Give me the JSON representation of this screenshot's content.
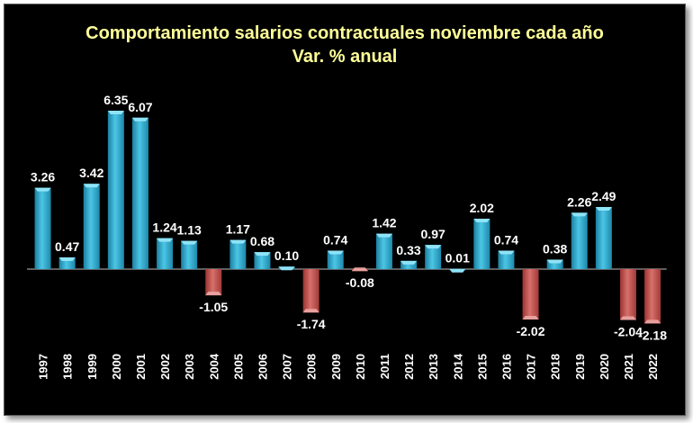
{
  "chart_data": {
    "type": "bar",
    "title": "Comportamiento salarios contractuales noviembre cada año",
    "subtitle": "Var. % anual",
    "categories": [
      "1997",
      "1998",
      "1999",
      "2000",
      "2001",
      "2002",
      "2003",
      "2004",
      "2005",
      "2006",
      "2007",
      "2008",
      "2009",
      "2010",
      "2011",
      "2012",
      "2013",
      "2014",
      "2015",
      "2016",
      "2017",
      "2018",
      "2019",
      "2020",
      "2021",
      "2022"
    ],
    "values": [
      3.26,
      0.47,
      3.42,
      6.35,
      6.07,
      1.24,
      1.13,
      -1.05,
      1.17,
      0.68,
      0.1,
      -1.74,
      0.74,
      -0.08,
      1.42,
      0.33,
      0.97,
      0.01,
      2.02,
      0.74,
      -2.02,
      0.38,
      2.26,
      2.49,
      -2.04,
      -2.18
    ],
    "value_labels": [
      "3.26",
      "0.47",
      "3.42",
      "6.35",
      "6.07",
      "1.24",
      "1.13",
      "-1.05",
      "1.17",
      "0.68",
      "0.10",
      "-1.74",
      "0.74",
      "-0.08",
      "1.42",
      "0.33",
      "0.97",
      "0.01",
      "2.02",
      "0.74",
      "-2.02",
      "0.38",
      "2.26",
      "2.49",
      "-2.04",
      "-2.18"
    ],
    "ylim": [
      -2.3,
      6.5
    ],
    "grid": false,
    "legend": "none",
    "colors": {
      "positive": "#29a9cc",
      "positive_light": "#8fe3f7",
      "negative": "#c0504d",
      "negative_light": "#e8a09e",
      "background": "#000000",
      "title": "#ffff99",
      "text": "#ffffff"
    }
  }
}
